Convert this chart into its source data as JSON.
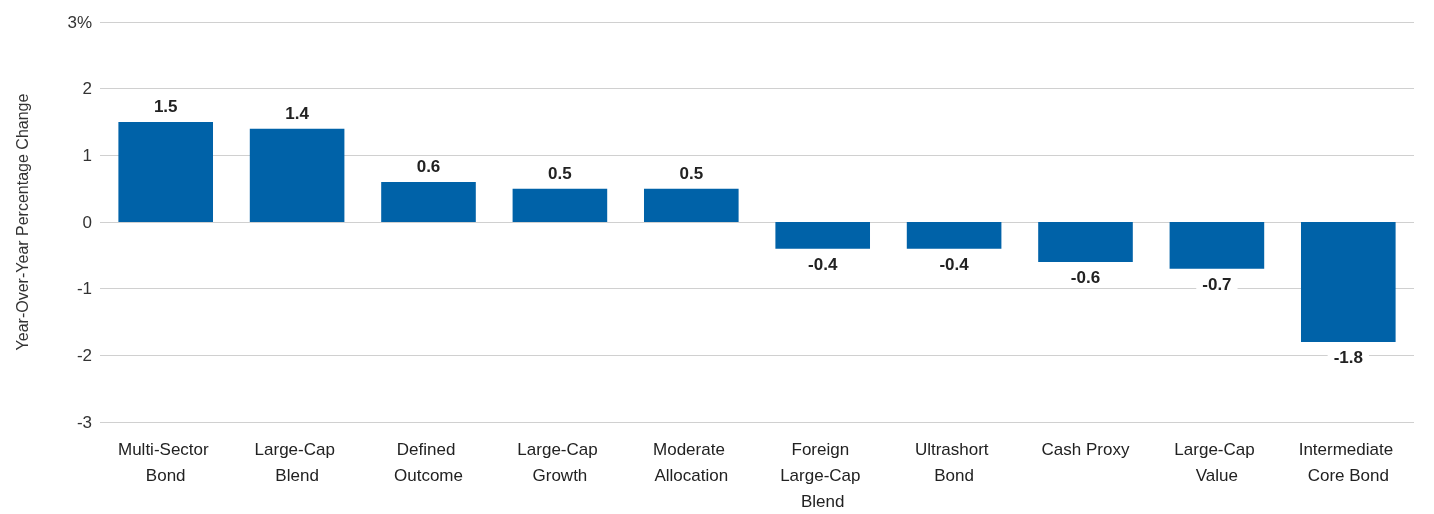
{
  "chart_data": {
    "type": "bar",
    "ylabel": "Year-Over-Year Percentage Change",
    "categories": [
      "Multi-Sector Bond",
      "Large-Cap Blend",
      "Defined Outcome",
      "Large-Cap Growth",
      "Moderate Allocation",
      "Foreign Large-Cap Blend",
      "Ultrashort Bond",
      "Cash Proxy",
      "Large-Cap Value",
      "Intermediate Core Bond"
    ],
    "values": [
      1.5,
      1.4,
      0.6,
      0.5,
      0.5,
      -0.4,
      -0.4,
      -0.6,
      -0.7,
      -1.8
    ],
    "color": "#0062a8",
    "ylim": [
      -3,
      3
    ],
    "yticks": [
      -3,
      -2,
      -1,
      0,
      1,
      2,
      {
        "value": 3,
        "label": "3%"
      }
    ],
    "grid": "y",
    "data_labels": true
  }
}
